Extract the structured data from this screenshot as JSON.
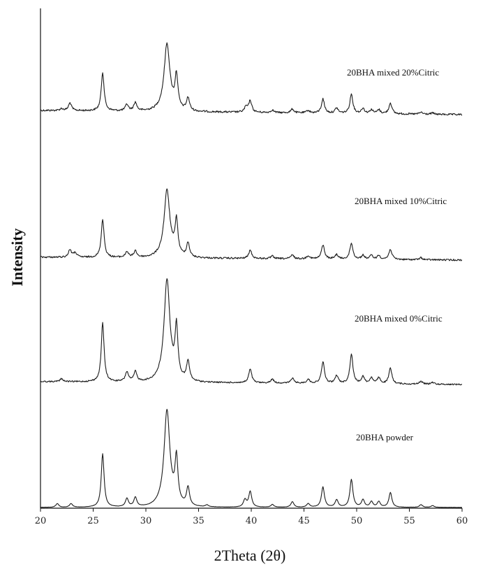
{
  "chart_data": {
    "type": "line",
    "title": "",
    "xlabel": "2Theta (2θ)",
    "ylabel": "Intensity",
    "xlim": [
      20,
      60
    ],
    "xticks": [
      20,
      25,
      30,
      35,
      40,
      45,
      50,
      55,
      60
    ],
    "y_ticks_shown": false,
    "grid": false,
    "legend": "none (series labelled inline, stacked vertically)",
    "peak_positions_2theta": [
      22.0,
      22.9,
      25.9,
      28.2,
      29.0,
      32.0,
      32.9,
      34.0,
      39.5,
      39.9,
      42.0,
      43.9,
      45.4,
      46.8,
      48.1,
      49.5,
      50.6,
      51.4,
      52.1,
      53.2,
      56.1,
      57.2
    ],
    "series": [
      {
        "name": "20BHA mixed 20%Citric",
        "peaks": [
          {
            "x": 22.0,
            "h": 0.03
          },
          {
            "x": 22.8,
            "h": 0.12
          },
          {
            "x": 25.9,
            "h": 0.6
          },
          {
            "x": 28.2,
            "h": 0.1
          },
          {
            "x": 29.0,
            "h": 0.13
          },
          {
            "x": 32.0,
            "h": 1.0
          },
          {
            "x": 32.9,
            "h": 0.5
          },
          {
            "x": 34.0,
            "h": 0.2
          },
          {
            "x": 39.5,
            "h": 0.08
          },
          {
            "x": 39.9,
            "h": 0.18
          },
          {
            "x": 42.0,
            "h": 0.04
          },
          {
            "x": 43.9,
            "h": 0.06
          },
          {
            "x": 45.4,
            "h": 0.04
          },
          {
            "x": 46.8,
            "h": 0.22
          },
          {
            "x": 48.1,
            "h": 0.08
          },
          {
            "x": 49.5,
            "h": 0.3
          },
          {
            "x": 50.6,
            "h": 0.08
          },
          {
            "x": 51.4,
            "h": 0.06
          },
          {
            "x": 52.1,
            "h": 0.06
          },
          {
            "x": 53.2,
            "h": 0.17
          },
          {
            "x": 56.1,
            "h": 0.03
          },
          {
            "x": 57.2,
            "h": 0.02
          }
        ]
      },
      {
        "name": "20BHA mixed 10%Citric",
        "peaks": [
          {
            "x": 22.8,
            "h": 0.12
          },
          {
            "x": 23.3,
            "h": 0.07
          },
          {
            "x": 25.9,
            "h": 0.6
          },
          {
            "x": 28.2,
            "h": 0.09
          },
          {
            "x": 29.0,
            "h": 0.1
          },
          {
            "x": 32.0,
            "h": 1.0
          },
          {
            "x": 32.9,
            "h": 0.52
          },
          {
            "x": 34.0,
            "h": 0.22
          },
          {
            "x": 39.9,
            "h": 0.13
          },
          {
            "x": 42.0,
            "h": 0.04
          },
          {
            "x": 43.9,
            "h": 0.06
          },
          {
            "x": 45.4,
            "h": 0.05
          },
          {
            "x": 46.8,
            "h": 0.22
          },
          {
            "x": 48.1,
            "h": 0.07
          },
          {
            "x": 49.5,
            "h": 0.25
          },
          {
            "x": 50.6,
            "h": 0.06
          },
          {
            "x": 51.4,
            "h": 0.06
          },
          {
            "x": 52.1,
            "h": 0.06
          },
          {
            "x": 53.2,
            "h": 0.16
          },
          {
            "x": 56.1,
            "h": 0.03
          }
        ]
      },
      {
        "name": "20BHA mixed 0%Citric",
        "peaks": [
          {
            "x": 22.0,
            "h": 0.03
          },
          {
            "x": 25.9,
            "h": 0.6
          },
          {
            "x": 28.2,
            "h": 0.1
          },
          {
            "x": 29.0,
            "h": 0.1
          },
          {
            "x": 32.0,
            "h": 1.0
          },
          {
            "x": 32.9,
            "h": 0.5
          },
          {
            "x": 34.0,
            "h": 0.2
          },
          {
            "x": 39.9,
            "h": 0.14
          },
          {
            "x": 42.0,
            "h": 0.04
          },
          {
            "x": 43.9,
            "h": 0.05
          },
          {
            "x": 45.4,
            "h": 0.04
          },
          {
            "x": 46.8,
            "h": 0.22
          },
          {
            "x": 48.1,
            "h": 0.08
          },
          {
            "x": 49.5,
            "h": 0.3
          },
          {
            "x": 50.6,
            "h": 0.07
          },
          {
            "x": 51.4,
            "h": 0.06
          },
          {
            "x": 52.1,
            "h": 0.06
          },
          {
            "x": 53.2,
            "h": 0.16
          },
          {
            "x": 56.1,
            "h": 0.03
          },
          {
            "x": 57.2,
            "h": 0.02
          }
        ]
      },
      {
        "name": "20BHA powder",
        "peaks": [
          {
            "x": 21.6,
            "h": 0.04
          },
          {
            "x": 22.9,
            "h": 0.04
          },
          {
            "x": 25.9,
            "h": 0.58
          },
          {
            "x": 28.2,
            "h": 0.09
          },
          {
            "x": 29.0,
            "h": 0.1
          },
          {
            "x": 32.0,
            "h": 1.0
          },
          {
            "x": 32.9,
            "h": 0.47
          },
          {
            "x": 34.0,
            "h": 0.2
          },
          {
            "x": 35.8,
            "h": 0.02
          },
          {
            "x": 39.4,
            "h": 0.08
          },
          {
            "x": 39.9,
            "h": 0.17
          },
          {
            "x": 42.0,
            "h": 0.03
          },
          {
            "x": 43.9,
            "h": 0.06
          },
          {
            "x": 45.4,
            "h": 0.04
          },
          {
            "x": 46.8,
            "h": 0.22
          },
          {
            "x": 48.1,
            "h": 0.08
          },
          {
            "x": 49.5,
            "h": 0.3
          },
          {
            "x": 50.6,
            "h": 0.08
          },
          {
            "x": 51.4,
            "h": 0.06
          },
          {
            "x": 52.1,
            "h": 0.06
          },
          {
            "x": 53.2,
            "h": 0.16
          },
          {
            "x": 56.1,
            "h": 0.03
          },
          {
            "x": 57.2,
            "h": 0.02
          }
        ]
      }
    ]
  }
}
